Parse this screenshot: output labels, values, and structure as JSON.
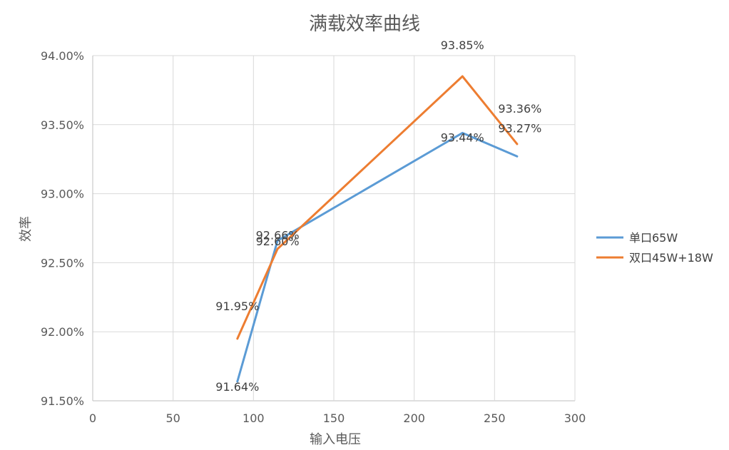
{
  "chart_data": {
    "type": "line",
    "title": "满载效率曲线",
    "xlabel": "输入电压",
    "ylabel": "效率",
    "xlim": [
      0,
      300
    ],
    "ylim": [
      91.5,
      94.0
    ],
    "x_ticks": [
      "0",
      "50",
      "100",
      "150",
      "200",
      "250",
      "300"
    ],
    "y_ticks": [
      "91.50%",
      "92.00%",
      "92.50%",
      "93.00%",
      "93.50%",
      "94.00%"
    ],
    "grid": true,
    "legend_position": "right",
    "series": [
      {
        "name": "单口65W",
        "color": "#5b9bd5",
        "x": [
          90,
          115,
          230,
          264
        ],
        "y": [
          91.64,
          92.66,
          93.44,
          93.27
        ],
        "labels": [
          "91.64%",
          "92.66%",
          "93.44%",
          "93.27%"
        ]
      },
      {
        "name": "双口45W+18W",
        "color": "#ed7d31",
        "x": [
          90,
          115,
          230,
          264
        ],
        "y": [
          91.95,
          92.6,
          93.85,
          93.36
        ],
        "labels": [
          "91.95%",
          "92.60%",
          "93.85%",
          "93.36%"
        ]
      }
    ]
  }
}
